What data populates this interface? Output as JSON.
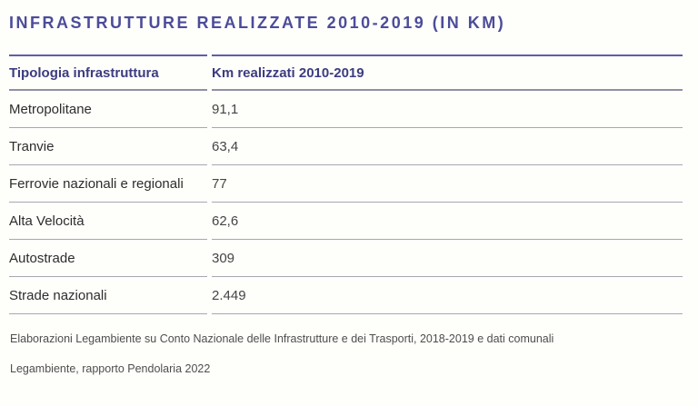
{
  "chart_data": {
    "type": "table",
    "title": "INFRASTRUTTURE REALIZZATE 2010-2019 (IN KM)",
    "columns": [
      "Tipologia infrastruttura",
      "Km realizzati 2010-2019"
    ],
    "rows": [
      {
        "label": "Metropolitane",
        "value": "91,1",
        "value_km": 91.1
      },
      {
        "label": "Tranvie",
        "value": "63,4",
        "value_km": 63.4
      },
      {
        "label": "Ferrovie nazionali e regionali",
        "value": "77",
        "value_km": 77
      },
      {
        "label": "Alta Velocità",
        "value": "62,6",
        "value_km": 62.6
      },
      {
        "label": "Autostrade",
        "value": "309",
        "value_km": 309
      },
      {
        "label": "Strade nazionali",
        "value": "2.449",
        "value_km": 2449
      }
    ],
    "unit": "km",
    "period": "2010-2019"
  },
  "footer": {
    "source_note": "Elaborazioni Legambiente su Conto Nazionale delle Infrastrutture e dei Trasporti, 2018-2019 e dati comunali",
    "attribution": "Legambiente, rapporto Pendolaria 2022"
  },
  "colors": {
    "title_text": "#4c4c9a",
    "header_text": "#3c3c80",
    "top_rule": "#5e5ea8",
    "header_rule": "#8f8fa6",
    "row_rule": "#a7a7b2",
    "body_text": "#2d2d2d",
    "value_text": "#454545",
    "footnote_text": "#4e4e4e",
    "background": "#fefefb"
  }
}
